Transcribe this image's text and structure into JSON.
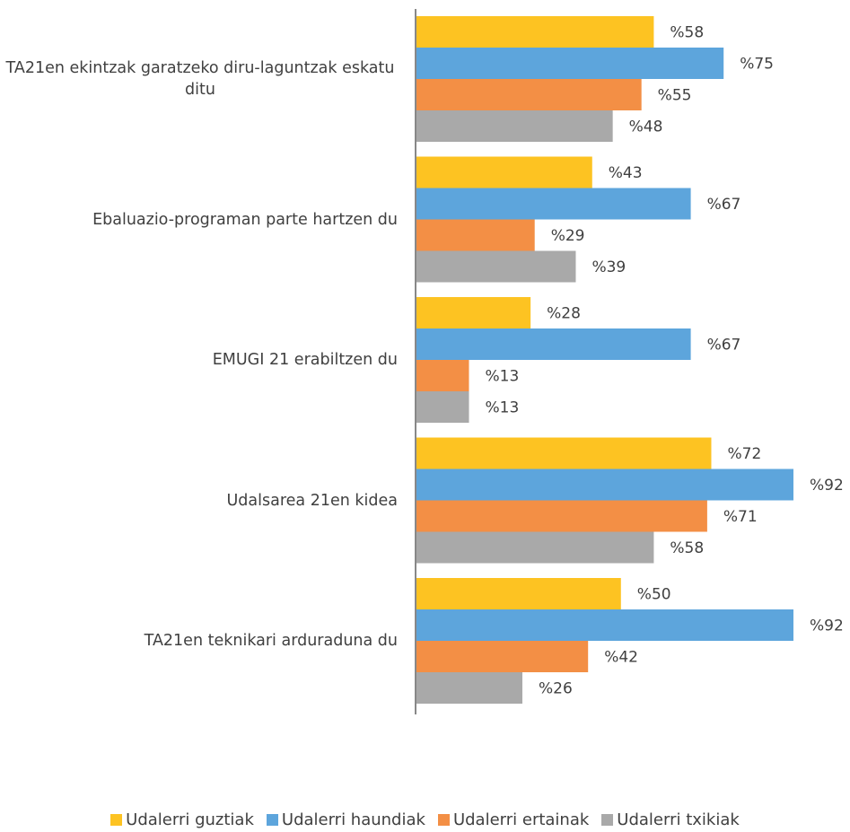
{
  "chart_data": {
    "type": "bar",
    "orientation": "horizontal",
    "categories": [
      "TA21en ekintzak garatzeko diru-laguntzak eskatu ditu",
      "Ebaluazio-programan parte hartzen du",
      "EMUGI 21 erabiltzen du",
      "Udalsarea 21en kidea",
      "TA21en teknikari arduraduna du"
    ],
    "series": [
      {
        "name": "Udalerri guztiak",
        "color": "#FDC322",
        "values": [
          58,
          43,
          28,
          72,
          50
        ],
        "value_labels": [
          "%58",
          "%43",
          "%28",
          "%72",
          "%50"
        ]
      },
      {
        "name": "Udalerri haundiak",
        "color": "#5DA5DC",
        "values": [
          75,
          67,
          67,
          92,
          92
        ],
        "value_labels": [
          "%75",
          "%67",
          "%67",
          "%92",
          "%92"
        ]
      },
      {
        "name": "Udalerri ertainak",
        "color": "#F38F45",
        "values": [
          55,
          29,
          13,
          71,
          42
        ],
        "value_labels": [
          "%55",
          "%29",
          "%13",
          "%71",
          "%42"
        ]
      },
      {
        "name": "Udalerri txikiak",
        "color": "#A9A9A9",
        "values": [
          48,
          39,
          13,
          58,
          26
        ],
        "value_labels": [
          "%48",
          "%39",
          "%13",
          "%58",
          "%26"
        ]
      }
    ],
    "legend": "bottom"
  }
}
